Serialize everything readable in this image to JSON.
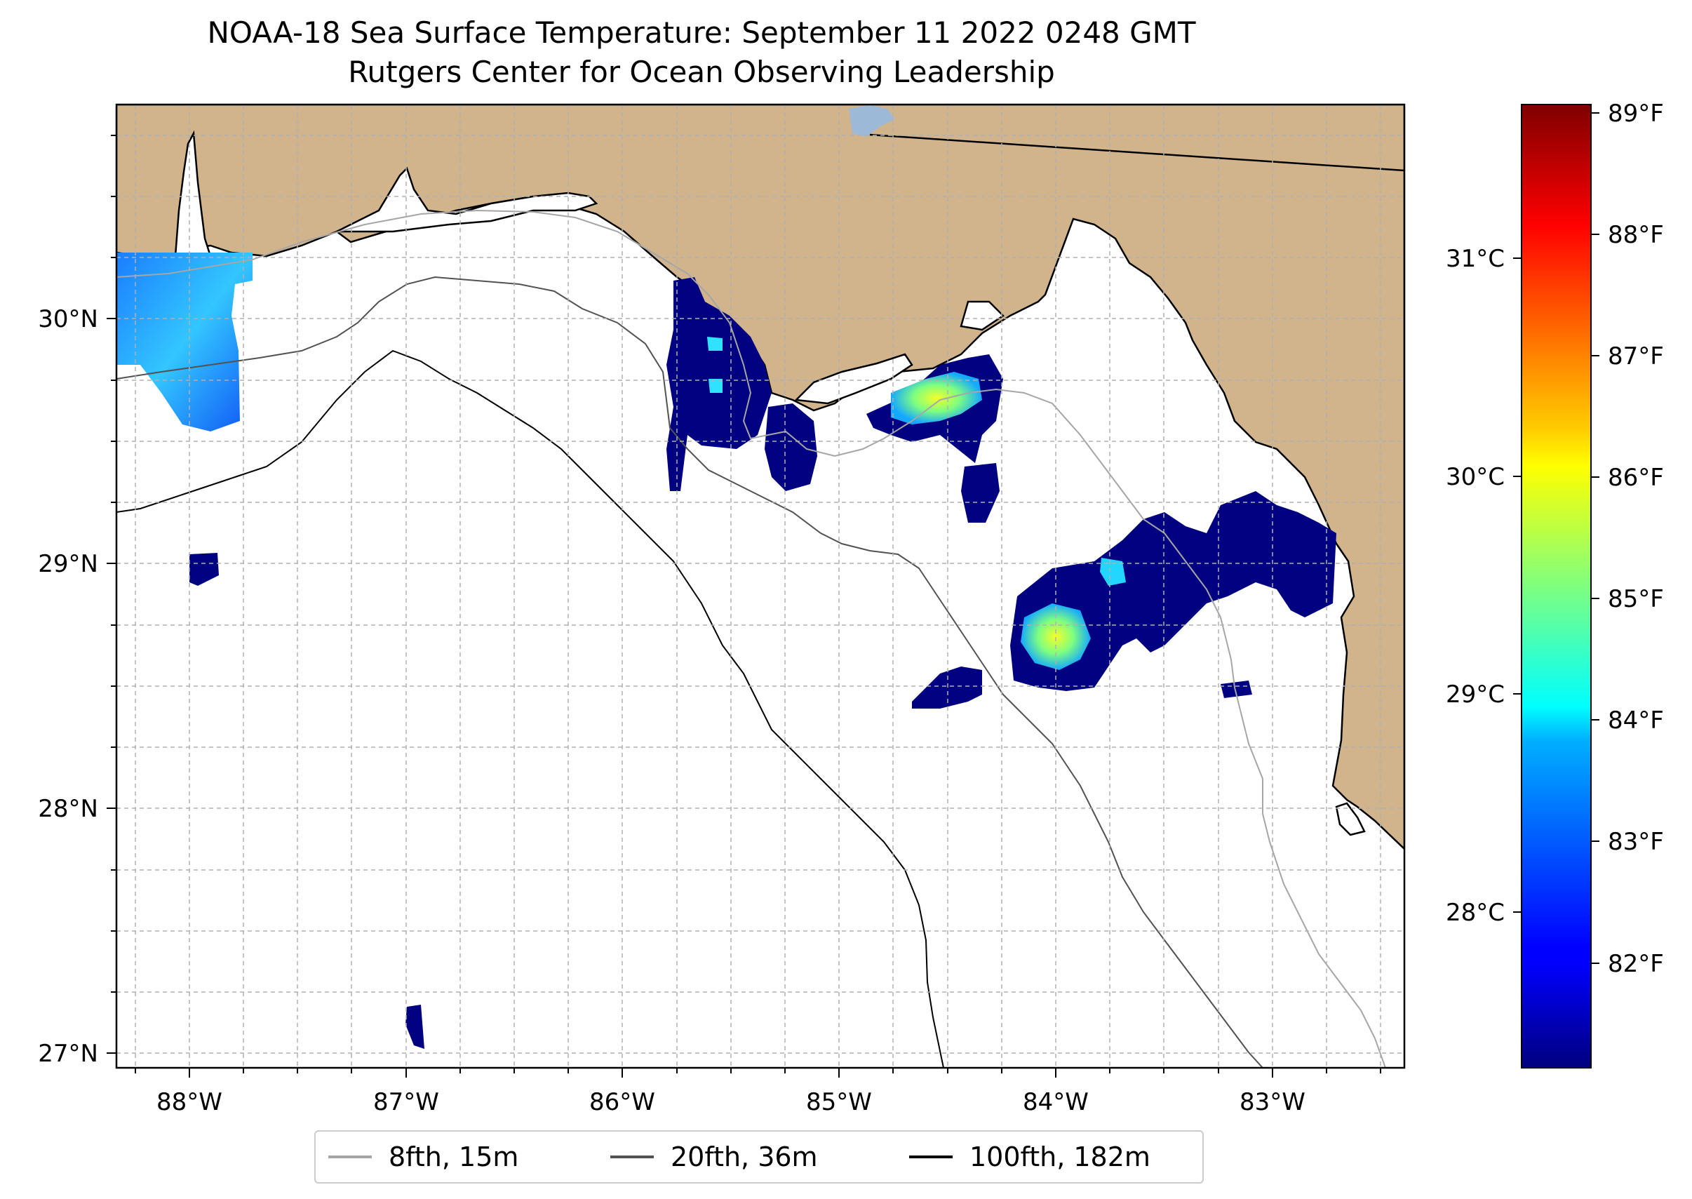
{
  "title": "NOAA-18 Sea Surface Temperature: September 11 2022 0248 GMT",
  "subtitle": "Rutgers Center for Ocean Observing Leadership",
  "map": {
    "lon_range": [
      -88.33,
      -82.4
    ],
    "lat_range": [
      26.93,
      30.85
    ],
    "lon_ticks": [
      "88°W",
      "87°W",
      "86°W",
      "85°W",
      "84°W",
      "83°W"
    ],
    "lat_ticks": [
      "27°N",
      "28°N",
      "29°N",
      "30°N"
    ],
    "land_color": "#d2b48c",
    "water_color": "#ffffff",
    "gridlines": true
  },
  "colorbar": {
    "colormap": "jet",
    "celsius_ticks": [
      "28°C",
      "29°C",
      "30°C",
      "31°C"
    ],
    "fahrenheit_ticks": [
      "82°F",
      "83°F",
      "84°F",
      "85°F",
      "86°F",
      "87°F",
      "88°F",
      "89°F"
    ]
  },
  "legend": [
    {
      "label": "8fth, 15m",
      "color": "#a6a6a6"
    },
    {
      "label": "20fth, 36m",
      "color": "#525252"
    },
    {
      "label": "100fth, 182m",
      "color": "#000000"
    }
  ]
}
